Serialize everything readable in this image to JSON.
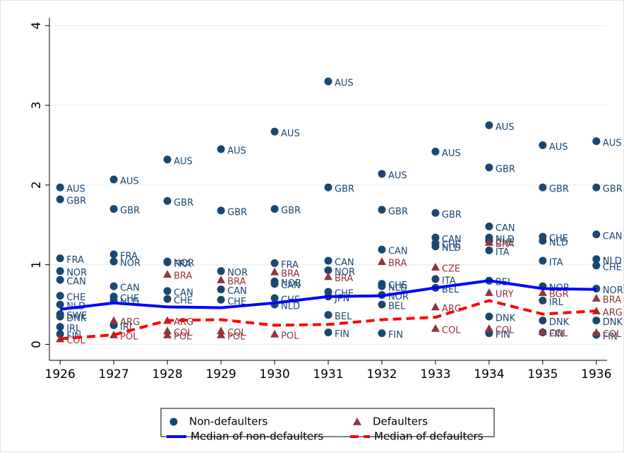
{
  "chart_data": {
    "type": "scatter",
    "xlim": [
      1925.8,
      1936.2
    ],
    "xticks": [
      1926,
      1927,
      1928,
      1929,
      1930,
      1931,
      1932,
      1933,
      1934,
      1935,
      1936
    ],
    "ylim": [
      -0.2,
      4.1
    ],
    "yticks": [
      0,
      1,
      2,
      3,
      4
    ],
    "grid": true,
    "series": [
      {
        "name": "Non-defaulters",
        "style": "circle",
        "color": "#1a476f",
        "x": [
          1926,
          1926,
          1926,
          1926,
          1926,
          1926,
          1926,
          1926,
          1926,
          1926,
          1926,
          1927,
          1927,
          1927,
          1927,
          1927,
          1927,
          1927,
          1927,
          1928,
          1928,
          1928,
          1928,
          1928,
          1928,
          1929,
          1929,
          1929,
          1929,
          1929,
          1930,
          1930,
          1930,
          1930,
          1930,
          1930,
          1930,
          1931,
          1931,
          1931,
          1931,
          1931,
          1931,
          1931,
          1931,
          1932,
          1932,
          1932,
          1932,
          1932,
          1932,
          1932,
          1932,
          1933,
          1933,
          1933,
          1933,
          1933,
          1933,
          1933,
          1934,
          1934,
          1934,
          1934,
          1934,
          1934,
          1934,
          1934,
          1934,
          1935,
          1935,
          1935,
          1935,
          1935,
          1935,
          1935,
          1935,
          1935,
          1936,
          1936,
          1936,
          1936,
          1936,
          1936,
          1936,
          1936
        ],
        "values": [
          1.97,
          1.82,
          1.08,
          0.92,
          0.81,
          0.61,
          0.5,
          0.38,
          0.35,
          0.22,
          0.13,
          2.07,
          1.7,
          1.13,
          1.04,
          0.73,
          0.6,
          0.55,
          0.24,
          2.32,
          1.8,
          1.04,
          1.03,
          0.67,
          0.57,
          2.45,
          1.68,
          0.92,
          0.69,
          0.56,
          2.67,
          1.7,
          1.02,
          0.79,
          0.76,
          0.58,
          0.5,
          3.3,
          1.97,
          1.05,
          0.93,
          0.66,
          0.6,
          0.37,
          0.15,
          2.14,
          1.69,
          1.19,
          0.76,
          0.73,
          0.62,
          0.5,
          0.14,
          2.42,
          1.65,
          1.34,
          1.27,
          1.23,
          0.82,
          0.71,
          2.75,
          2.22,
          1.48,
          1.34,
          1.3,
          1.18,
          0.8,
          0.35,
          0.14,
          2.5,
          1.97,
          1.35,
          1.3,
          1.05,
          0.73,
          0.55,
          0.3,
          0.15,
          2.55,
          1.97,
          1.38,
          1.07,
          0.99,
          0.7,
          0.3,
          0.12
        ],
        "labels": [
          "AUS",
          "GBR",
          "FRA",
          "NOR",
          "CAN",
          "CHE",
          "NLD",
          "SWE",
          "DNK",
          "IRL",
          "FIN",
          "AUS",
          "GBR",
          "FRA",
          "NOR",
          "CAN",
          "CHE",
          "NLD",
          "IRL",
          "AUS",
          "GBR",
          "NOR",
          "FRA",
          "CAN",
          "CHE",
          "AUS",
          "GBR",
          "NOR",
          "CAN",
          "CHE",
          "AUS",
          "GBR",
          "FRA",
          "NOR",
          "CAN",
          "CHE",
          "NLD",
          "AUS",
          "GBR",
          "CAN",
          "NOR",
          "CHE",
          "JPN",
          "BEL",
          "FIN",
          "AUS",
          "GBR",
          "CAN",
          "CHE",
          "NLD",
          "NOR",
          "BEL",
          "FIN",
          "AUS",
          "GBR",
          "CAN",
          "CHE",
          "NLD",
          "ITA",
          "BEL",
          "AUS",
          "GBR",
          "CAN",
          "NLD",
          "CHE",
          "ITA",
          "BEL",
          "DNK",
          "FIN",
          "AUS",
          "GBR",
          "CHE",
          "NLD",
          "ITA",
          "NOR",
          "IRL",
          "DNK",
          "FIN",
          "AUS",
          "GBR",
          "CAN",
          "NLD",
          "CHE",
          "NOR",
          "DNK",
          "FIN"
        ]
      },
      {
        "name": "Defaulters",
        "style": "triangle",
        "color": "#90353b",
        "x": [
          1926,
          1927,
          1927,
          1928,
          1928,
          1928,
          1928,
          1929,
          1929,
          1929,
          1930,
          1930,
          1931,
          1932,
          1933,
          1933,
          1933,
          1934,
          1934,
          1934,
          1935,
          1935,
          1936,
          1936,
          1936
        ],
        "values": [
          0.07,
          0.3,
          0.12,
          0.88,
          0.3,
          0.17,
          0.12,
          0.81,
          0.17,
          0.12,
          0.91,
          0.13,
          0.85,
          1.04,
          0.97,
          0.47,
          0.2,
          1.28,
          0.65,
          0.2,
          0.65,
          0.16,
          0.58,
          0.42,
          0.15
        ],
        "labels": [
          "COL",
          "ARG",
          "POL",
          "BRA",
          "ARG",
          "COL",
          "POL",
          "BRA",
          "COL",
          "POL",
          "BRA",
          "POL",
          "BRA",
          "BRA",
          "CZE",
          "ARG",
          "COL",
          "BRA",
          "URY",
          "COL",
          "BGR",
          "COL",
          "BRA",
          "ARG",
          "COL"
        ]
      },
      {
        "name": "Median of non-defaulters",
        "style": "line",
        "color": "#0000ff",
        "x": [
          1926,
          1927,
          1928,
          1929,
          1930,
          1931,
          1932,
          1933,
          1934,
          1935,
          1936
        ],
        "values": [
          0.44,
          0.52,
          0.47,
          0.46,
          0.52,
          0.6,
          0.61,
          0.71,
          0.8,
          0.7,
          0.69
        ]
      },
      {
        "name": "Median of defaulters",
        "style": "dashed",
        "color": "#ff0000",
        "x": [
          1926,
          1927,
          1928,
          1929,
          1930,
          1931,
          1932,
          1933,
          1934,
          1935,
          1936
        ],
        "values": [
          0.07,
          0.12,
          0.3,
          0.31,
          0.24,
          0.25,
          0.31,
          0.34,
          0.55,
          0.38,
          0.42
        ]
      }
    ]
  }
}
